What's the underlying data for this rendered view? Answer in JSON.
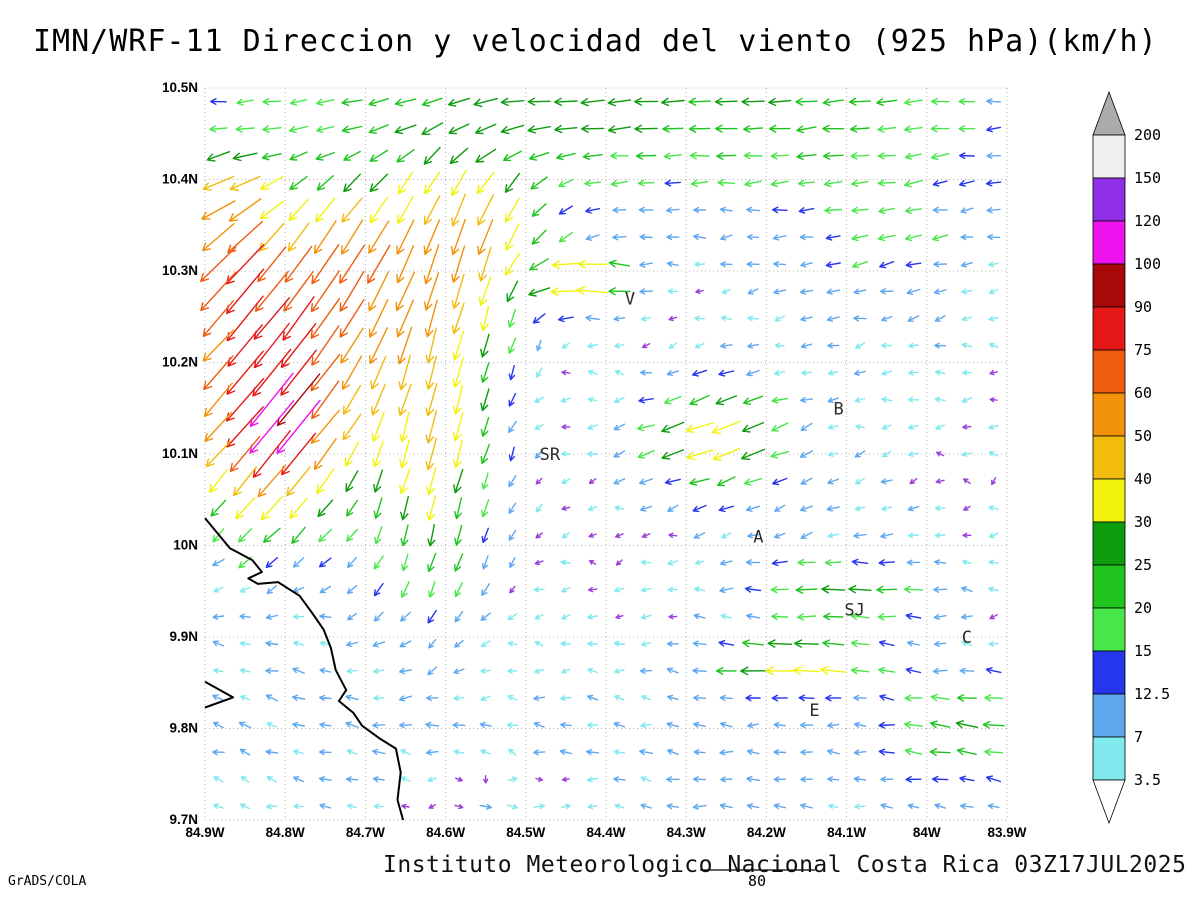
{
  "title": "IMN/WRF-11 Direccion y velocidad del viento (925 hPa)(km/h)",
  "footer": "Instituto Meteorologico Nacional Costa Rica 03Z17JUL2025",
  "credit": "GrADS/COLA",
  "reference_vector": {
    "label": "80",
    "speed_kmh": 80
  },
  "chart_data": {
    "type": "vector_field",
    "model": "IMN/WRF-11",
    "variable": "Direccion y velocidad del viento",
    "level": "925 hPa",
    "units": "km/h",
    "valid_time": "03Z17JUL2025",
    "lon_range": [
      -84.9,
      -83.9
    ],
    "lat_range": [
      9.7,
      10.5
    ],
    "x_ticks": [
      "84.9W",
      "84.8W",
      "84.7W",
      "84.6W",
      "84.5W",
      "84.4W",
      "84.3W",
      "84.2W",
      "84.1W",
      "84W",
      "83.9W"
    ],
    "y_ticks": [
      "10.5N",
      "10.4N",
      "10.3N",
      "10.2N",
      "10.1N",
      "10N",
      "9.9N",
      "9.8N",
      "9.7N"
    ],
    "grid": {
      "nx": 30,
      "ny": 27
    },
    "legend": {
      "levels_low_to_high": [
        3.5,
        7,
        12.5,
        15,
        20,
        25,
        30,
        40,
        50,
        60,
        75,
        90,
        100,
        120,
        150,
        200
      ],
      "colors_low_to_high": [
        "#7fe9ee",
        "#5fa8f0",
        "#2636ec",
        "#49e649",
        "#1fc41f",
        "#0d9c0d",
        "#f2f20c",
        "#f2bc0c",
        "#f2920a",
        "#ee5c10",
        "#e61717",
        "#a80808",
        "#ee12ee",
        "#8f2fe8",
        "#f0f0f0"
      ],
      "above_color": "#ababab",
      "below_color": "#ffffff",
      "calm_arrow_color": "#9a3fd9"
    },
    "stations": [
      {
        "label": "V",
        "lon": -84.37,
        "lat": 10.27
      },
      {
        "label": "B",
        "lon": -84.11,
        "lat": 10.15
      },
      {
        "label": "SR",
        "lon": -84.47,
        "lat": 10.1
      },
      {
        "label": "A",
        "lon": -84.21,
        "lat": 10.01
      },
      {
        "label": "SJ",
        "lon": -84.09,
        "lat": 9.93
      },
      {
        "label": "C",
        "lon": -83.95,
        "lat": 9.9
      },
      {
        "label": "E",
        "lon": -84.14,
        "lat": 9.82
      }
    ],
    "coastline": [
      [
        [
          -84.9,
          10.03
        ],
        [
          -84.869,
          9.997
        ],
        [
          -84.841,
          9.984
        ],
        [
          -84.829,
          9.971
        ],
        [
          -84.846,
          9.964
        ],
        [
          -84.834,
          9.958
        ],
        [
          -84.809,
          9.96
        ],
        [
          -84.782,
          9.945
        ],
        [
          -84.767,
          9.927
        ],
        [
          -84.752,
          9.908
        ],
        [
          -84.743,
          9.888
        ],
        [
          -84.737,
          9.864
        ],
        [
          -84.724,
          9.842
        ],
        [
          -84.733,
          9.83
        ],
        [
          -84.715,
          9.817
        ],
        [
          -84.704,
          9.803
        ],
        [
          -84.682,
          9.789
        ],
        [
          -84.662,
          9.778
        ],
        [
          -84.656,
          9.752
        ],
        [
          -84.66,
          9.722
        ],
        [
          -84.653,
          9.7
        ]
      ],
      [
        [
          -84.9,
          9.851
        ],
        [
          -84.865,
          9.834
        ],
        [
          -84.9,
          9.823
        ]
      ]
    ],
    "flow": {
      "base": {
        "u": -3,
        "v": 0
      },
      "jitter": 2.4,
      "features": [
        {
          "lon": -84.4,
          "lat": 10.5,
          "sx": 0.55,
          "sy": 0.12,
          "u": -24,
          "v": -2
        },
        {
          "lon": -84.82,
          "lat": 10.16,
          "sx": 0.1,
          "sy": 0.13,
          "u": -50,
          "v": -64
        },
        {
          "lon": -84.8,
          "lat": 10.13,
          "sx": 0.035,
          "sy": 0.04,
          "u": -26,
          "v": -30
        },
        {
          "lon": -84.73,
          "lat": 10.3,
          "sx": 0.1,
          "sy": 0.09,
          "u": -24,
          "v": -40
        },
        {
          "lon": -84.87,
          "lat": 10.3,
          "sx": 0.05,
          "sy": 0.07,
          "u": -34,
          "v": -36
        },
        {
          "lon": -84.87,
          "lat": 10.39,
          "sx": 0.05,
          "sy": 0.05,
          "u": -28,
          "v": -8
        },
        {
          "lon": -84.62,
          "lat": 10.17,
          "sx": 0.09,
          "sy": 0.22,
          "u": -6,
          "v": -42
        },
        {
          "lon": -84.55,
          "lat": 10.34,
          "sx": 0.08,
          "sy": 0.08,
          "u": -8,
          "v": -30
        },
        {
          "lon": -84.43,
          "lat": 10.29,
          "sx": 0.06,
          "sy": 0.035,
          "u": -40,
          "v": 4
        },
        {
          "lon": -84.27,
          "lat": 10.12,
          "sx": 0.09,
          "sy": 0.06,
          "u": -32,
          "v": -12
        },
        {
          "lon": -84.17,
          "lat": 9.87,
          "sx": 0.1,
          "sy": 0.035,
          "u": -32,
          "v": 2
        },
        {
          "lon": -84.1,
          "lat": 9.95,
          "sx": 0.12,
          "sy": 0.04,
          "u": -22,
          "v": 2
        },
        {
          "lon": -83.95,
          "lat": 9.8,
          "sx": 0.1,
          "sy": 0.07,
          "u": -20,
          "v": 3
        },
        {
          "lon": -84.75,
          "lat": 9.82,
          "sx": 0.25,
          "sy": 0.12,
          "u": -5,
          "v": 3
        },
        {
          "lon": -84.3,
          "lat": 9.75,
          "sx": 0.3,
          "sy": 0.1,
          "u": -6,
          "v": 1
        },
        {
          "lon": -84.52,
          "lat": 9.72,
          "sx": 0.1,
          "sy": 0.04,
          "u": 16,
          "v": -2
        },
        {
          "lon": -84.05,
          "lat": 10.33,
          "sx": 0.15,
          "sy": 0.12,
          "u": -9,
          "v": -3
        },
        {
          "lon": -84.15,
          "lat": 10.05,
          "sx": 0.15,
          "sy": 0.1,
          "u": -4,
          "v": -3
        }
      ]
    }
  }
}
